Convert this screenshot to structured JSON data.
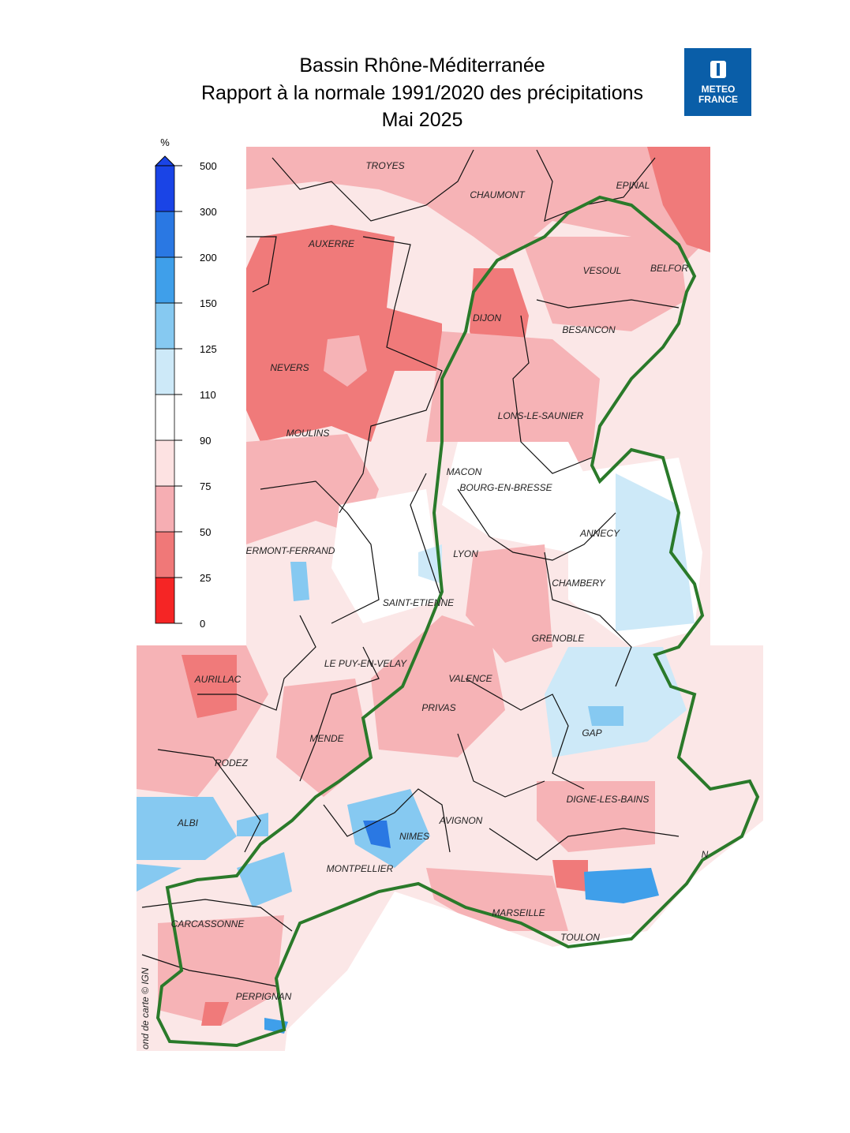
{
  "header": {
    "title": [
      "Bassin Rhône-Méditerranée",
      "Rapport à la normale 1991/2020 des précipitations",
      "Mai 2025"
    ],
    "logo": [
      "METEO",
      "FRANCE"
    ]
  },
  "legend": {
    "unit": "%",
    "ticks": [
      0,
      25,
      50,
      75,
      90,
      110,
      125,
      150,
      200,
      300,
      500
    ],
    "colors": [
      "#f52525",
      "#f07878",
      "#f6aeb3",
      "#fde2e2",
      "#ffffff",
      "#cde9f8",
      "#86c9f1",
      "#3f9fea",
      "#2a78e3",
      "#1a44e6"
    ]
  },
  "map": {
    "cities": [
      "TROYES",
      "CHAUMONT",
      "EPINAL",
      "AUXERRE",
      "VESOUL",
      "BELFOR",
      "DIJON",
      "BESANCON",
      "NEVERS",
      "LONS-LE-SAUNIER",
      "MOULINS",
      "MACON",
      "BOURG-EN-BRESSE",
      "ANNECY",
      "ERMONT-FERRAND",
      "LYON",
      "CHAMBERY",
      "SAINT-ETIENNE",
      "GRENOBLE",
      "LE PUY-EN-VELAY",
      "AURILLAC",
      "VALENCE",
      "PRIVAS",
      "GAP",
      "MENDE",
      "RODEZ",
      "DIGNE-LES-BAINS",
      "ALBI",
      "AVIGNON",
      "NIMES",
      "MONTPELLIER",
      "CARCASSONNE",
      "MARSEILLE",
      "TOULON",
      "PERPIGNAN",
      "N"
    ],
    "credit": "ond de carte © IGN"
  }
}
